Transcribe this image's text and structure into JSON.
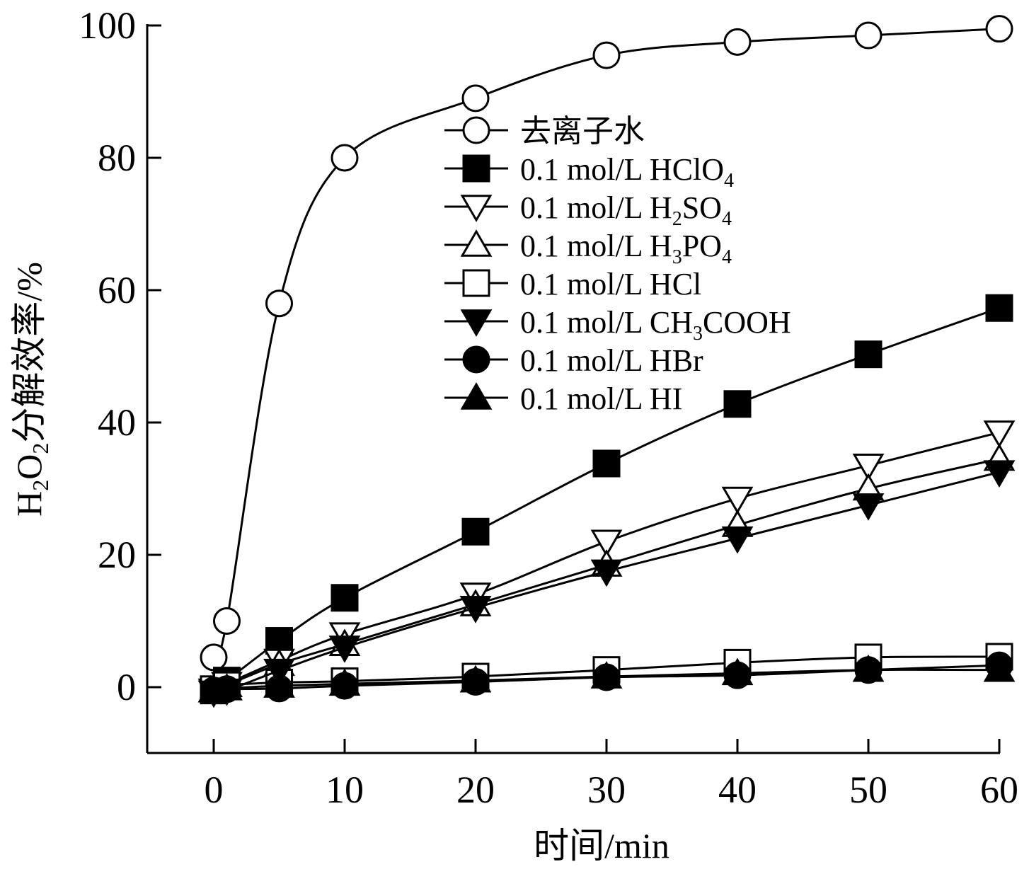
{
  "chart_data": {
    "type": "line",
    "xlabel": "时间/min",
    "ylabel": {
      "base": "H",
      "sub1": "2",
      "mid": "O",
      "sub2": "2",
      "rest": "分解效率/%"
    },
    "xlim": [
      -5,
      60
    ],
    "ylim": [
      -10,
      100
    ],
    "x_ticks": [
      0,
      10,
      20,
      30,
      40,
      50,
      60
    ],
    "y_ticks": [
      0,
      20,
      40,
      60,
      80,
      100
    ],
    "grid": false,
    "legend_position": "center",
    "series": [
      {
        "name": "去离子水",
        "label": {
          "main": "去离子水"
        },
        "marker": "circle-open",
        "x": [
          0,
          1,
          5,
          10,
          20,
          30,
          40,
          50,
          60
        ],
        "y": [
          4.5,
          10,
          58,
          80,
          89,
          95.5,
          97.5,
          98.5,
          99.5
        ]
      },
      {
        "name": "0.1 mol/L HClO4",
        "label": {
          "main": "0.1 mol/L HClO",
          "sub": "4",
          "tail": ""
        },
        "marker": "square-filled",
        "x": [
          0,
          1,
          5,
          10,
          20,
          30,
          40,
          50,
          60
        ],
        "y": [
          -0.5,
          1,
          7,
          13.5,
          23.5,
          33.8,
          42.8,
          50.3,
          57.3
        ]
      },
      {
        "name": "0.1 mol/L H2SO4",
        "label": {
          "main": "0.1 mol/L H",
          "sub": "2",
          "tail": "SO",
          "sub2": "4"
        },
        "marker": "triangle-down-open",
        "x": [
          0,
          1,
          5,
          10,
          20,
          30,
          40,
          50,
          60
        ],
        "y": [
          -0.5,
          0.5,
          4,
          8,
          14,
          22,
          28.5,
          33.5,
          38.5
        ]
      },
      {
        "name": "0.1 mol/L H3PO4",
        "label": {
          "main": "0.1 mol/L H",
          "sub": "3",
          "tail": "PO",
          "sub2": "4"
        },
        "marker": "triangle-up-open",
        "x": [
          0,
          1,
          5,
          10,
          20,
          30,
          40,
          50,
          60
        ],
        "y": [
          -0.5,
          0.3,
          3.5,
          6.5,
          12.5,
          18.5,
          24.5,
          30,
          34.5
        ]
      },
      {
        "name": "0.1 mol/L HCl",
        "label": {
          "main": "0.1 mol/L HCl"
        },
        "marker": "square-open",
        "x": [
          0,
          1,
          5,
          10,
          20,
          30,
          40,
          50,
          60
        ],
        "y": [
          -0.3,
          0.3,
          0.7,
          0.9,
          1.6,
          2.6,
          3.7,
          4.5,
          4.6
        ]
      },
      {
        "name": "0.1 mol/L CH3COOH",
        "label": {
          "main": "0.1 mol/L CH",
          "sub": "3",
          "tail": "COOH"
        },
        "marker": "triangle-down-filled",
        "x": [
          0,
          1,
          5,
          10,
          20,
          30,
          40,
          50,
          60
        ],
        "y": [
          -0.8,
          -0.5,
          2.5,
          6,
          12,
          17.5,
          22.5,
          27.5,
          32.5
        ]
      },
      {
        "name": "0.1 mol/L HBr",
        "label": {
          "main": "0.1 mol/L HBr"
        },
        "marker": "circle-filled",
        "x": [
          0,
          1,
          5,
          10,
          20,
          30,
          40,
          50,
          60
        ],
        "y": [
          -0.5,
          -0.3,
          -0.2,
          0.2,
          0.8,
          1.5,
          1.8,
          2.6,
          3.3
        ]
      },
      {
        "name": "0.1 mol/L HI",
        "label": {
          "main": "0.1 mol/L HI"
        },
        "marker": "triangle-up-filled",
        "x": [
          0,
          1,
          5,
          10,
          20,
          30,
          40,
          50,
          60
        ],
        "y": [
          -0.5,
          -0.2,
          0.2,
          0.5,
          1.0,
          1.6,
          2.1,
          2.6,
          2.6
        ]
      }
    ]
  }
}
